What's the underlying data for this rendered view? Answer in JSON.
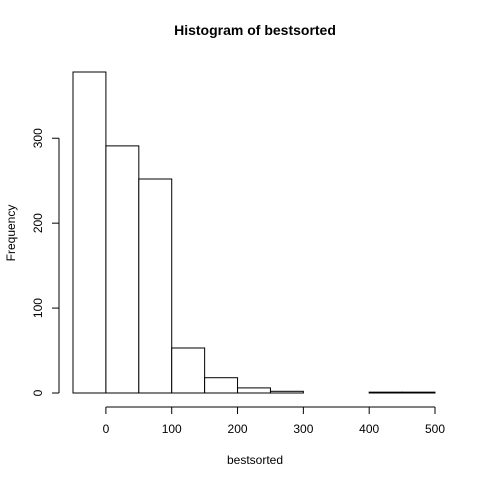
{
  "chart_data": {
    "type": "bar",
    "title": "Histogram of bestsorted",
    "xlabel": "bestsorted",
    "ylabel": "Frequency",
    "bins": [
      {
        "from": -50,
        "to": 0,
        "count": 378
      },
      {
        "from": 0,
        "to": 50,
        "count": 291
      },
      {
        "from": 50,
        "to": 100,
        "count": 252
      },
      {
        "from": 100,
        "to": 150,
        "count": 53
      },
      {
        "from": 150,
        "to": 200,
        "count": 18
      },
      {
        "from": 200,
        "to": 250,
        "count": 6
      },
      {
        "from": 250,
        "to": 300,
        "count": 2
      },
      {
        "from": 300,
        "to": 350,
        "count": 0
      },
      {
        "from": 350,
        "to": 400,
        "count": 0
      },
      {
        "from": 400,
        "to": 450,
        "count": 1
      },
      {
        "from": 450,
        "to": 500,
        "count": 1
      }
    ],
    "xlim": [
      -50,
      500
    ],
    "ylim": [
      0,
      378
    ],
    "xticks": [
      0,
      100,
      200,
      300,
      400,
      500
    ],
    "yticks": [
      0,
      100,
      200,
      300
    ],
    "grid": false,
    "bar_color": "#ffffff",
    "line_color": "#000000"
  }
}
